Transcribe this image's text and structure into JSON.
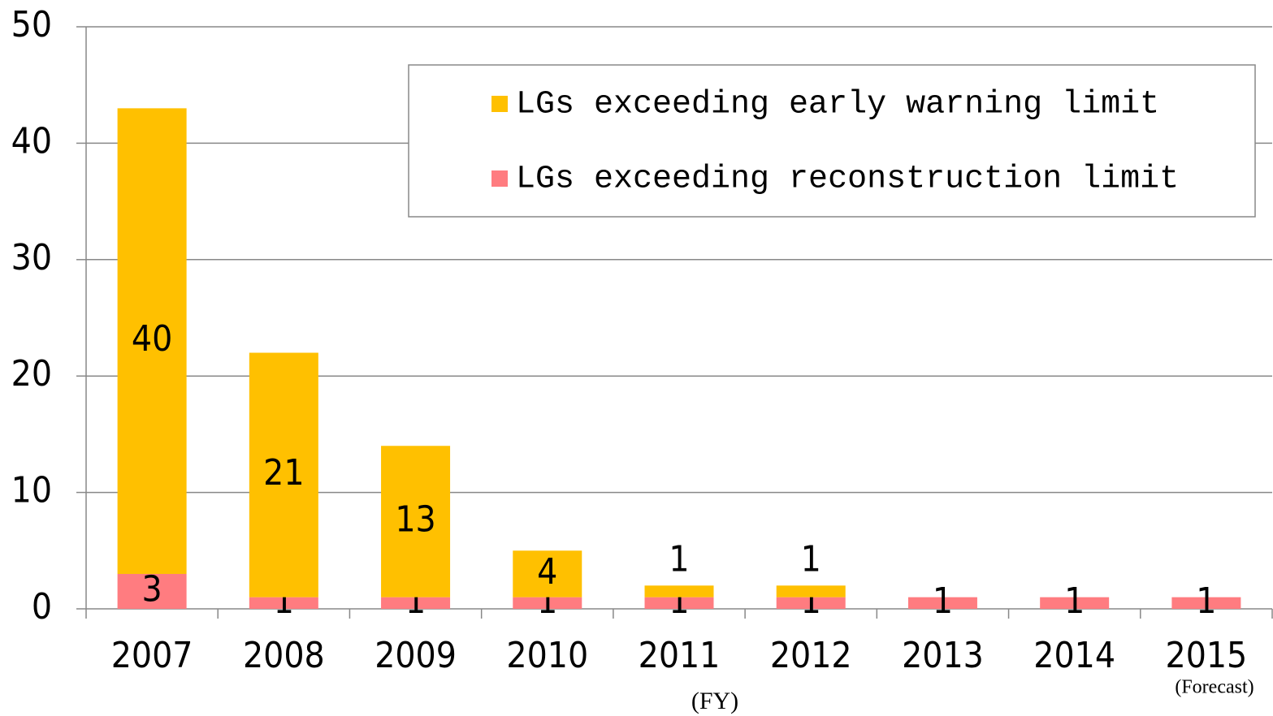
{
  "chart_data": {
    "type": "stacked_bar",
    "categories": [
      "2007",
      "2008",
      "2009",
      "2010",
      "2011",
      "2012",
      "2013",
      "2014",
      "2015"
    ],
    "series": [
      {
        "name": "LGs exceeding reconstruction limit",
        "color": "#ff7c80",
        "values": [
          3,
          1,
          1,
          1,
          1,
          1,
          1,
          1,
          1
        ]
      },
      {
        "name": "LGs exceeding early warning limit",
        "color": "#ffc000",
        "values": [
          40,
          21,
          13,
          4,
          1,
          1,
          null,
          null,
          null
        ]
      }
    ],
    "x_label": "(FY)",
    "annotations": [
      "(Forecast)"
    ],
    "ylim": [
      0,
      50
    ],
    "yticks": [
      0,
      10,
      20,
      30,
      40,
      50
    ],
    "grid": true,
    "legend": "upper right"
  }
}
